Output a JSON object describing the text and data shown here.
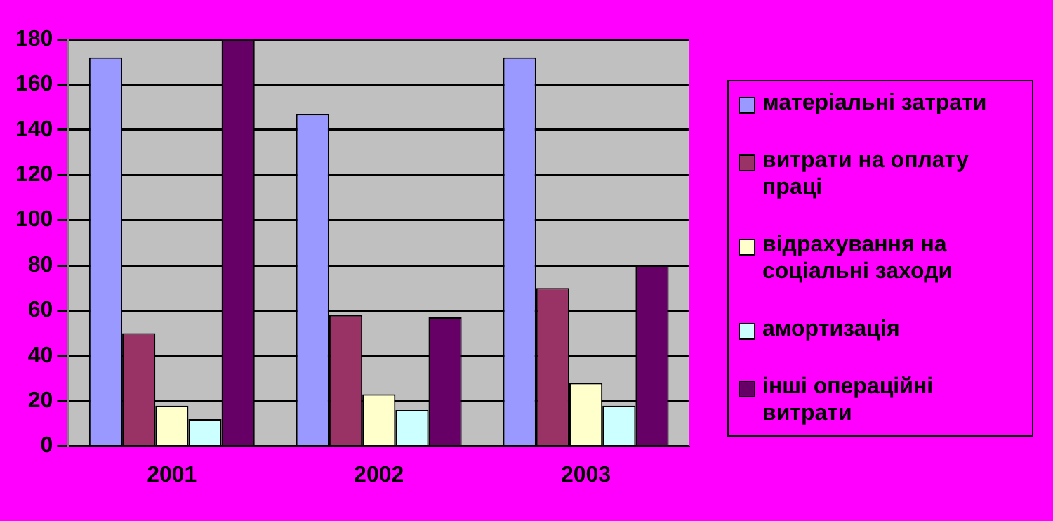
{
  "chart_data": {
    "type": "bar",
    "categories": [
      "2001",
      "2002",
      "2003"
    ],
    "series": [
      {
        "name": "матеріальні затрати",
        "color": "#9999ff",
        "values": [
          172,
          147,
          172
        ]
      },
      {
        "name": "витрати на оплату праці",
        "color": "#993366",
        "values": [
          50,
          58,
          70
        ]
      },
      {
        "name": "відрахування на соціальні заходи",
        "color": "#ffffcc",
        "values": [
          18,
          23,
          28
        ]
      },
      {
        "name": "амортизація",
        "color": "#ccffff",
        "values": [
          12,
          16,
          18
        ]
      },
      {
        "name": "інші операційні витрати",
        "color": "#660066",
        "values": [
          180,
          57,
          80
        ]
      }
    ],
    "ylim": [
      0,
      180
    ],
    "yticks": [
      0,
      20,
      40,
      60,
      80,
      100,
      120,
      140,
      160,
      180
    ],
    "grid": "y",
    "legend": "right"
  }
}
